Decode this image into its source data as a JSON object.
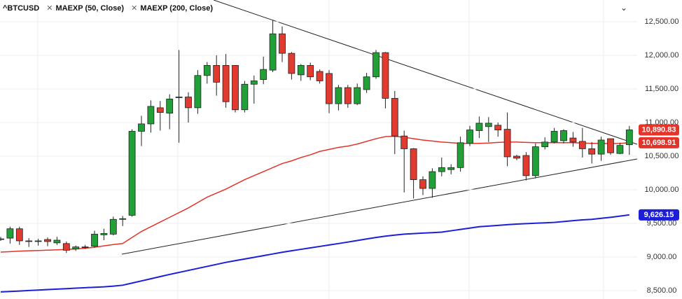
{
  "chart_data": {
    "type": "candlestick",
    "title": "^BTCUSD",
    "ylim": [
      8375,
      12823
    ],
    "yticks": [
      {
        "value": 8500,
        "label": "8,500.00"
      },
      {
        "value": 9000,
        "label": "9,000.00"
      },
      {
        "value": 9500,
        "label": "9,500.00"
      },
      {
        "value": 10000,
        "label": "10,000.00"
      },
      {
        "value": 10500,
        "label": "10,500.00"
      },
      {
        "value": 11000,
        "label": "11,000.00"
      },
      {
        "value": 11500,
        "label": "11,500.00"
      },
      {
        "value": 12000,
        "label": "12,000.00"
      },
      {
        "value": 12500,
        "label": "12,500.00"
      }
    ],
    "grid": true,
    "candles": {
      "up_color": "#21a038",
      "down_color": "#e23a2e",
      "label_color": "#e5352b",
      "last_label": "10,890.83",
      "open": [
        9270,
        9280,
        9420,
        9240,
        9230,
        9260,
        9210,
        9200,
        9120,
        9150,
        9160,
        9330,
        9340,
        9560,
        9620,
        10870,
        10980,
        11220,
        11140,
        11370,
        11380,
        11220,
        11700,
        11850,
        11850,
        11850,
        11190,
        11570,
        11640,
        11780,
        12320,
        12030,
        11710,
        11850,
        11760,
        11730,
        11280,
        11520,
        11280,
        11490,
        11680,
        12040,
        11360,
        10800,
        10610,
        10150,
        10020,
        10270,
        10300,
        10330,
        10690,
        10880,
        10940,
        10960,
        10900,
        10500,
        10510,
        10210,
        10640,
        10710,
        10730,
        10770,
        10720,
        10610,
        10530,
        10760,
        10540,
        10670
      ],
      "high": [
        9300,
        9450,
        9450,
        9280,
        9270,
        9290,
        9300,
        9230,
        9170,
        9180,
        9390,
        9420,
        9600,
        9610,
        10900,
        11100,
        11330,
        11320,
        11420,
        12080,
        11450,
        11780,
        11900,
        12000,
        12020,
        11850,
        11620,
        11700,
        11980,
        12520,
        12430,
        12050,
        11870,
        11890,
        11790,
        11780,
        11560,
        11560,
        11580,
        11740,
        12080,
        12050,
        11470,
        10880,
        10620,
        10200,
        10320,
        10480,
        10380,
        10790,
        10950,
        11090,
        11080,
        11000,
        11150,
        10520,
        10560,
        10690,
        10780,
        10920,
        10900,
        10860,
        10920,
        10710,
        10790,
        10760,
        10700,
        10950
      ],
      "low": [
        9240,
        9200,
        9180,
        9150,
        9170,
        9160,
        9180,
        9060,
        9090,
        9120,
        9140,
        9250,
        9320,
        9460,
        9600,
        10650,
        10850,
        10880,
        10900,
        10700,
        11000,
        11130,
        11580,
        11400,
        11220,
        11150,
        11150,
        11280,
        11570,
        11750,
        11900,
        11640,
        11620,
        11630,
        11580,
        11140,
        11180,
        11220,
        11260,
        11440,
        11650,
        11210,
        10530,
        9960,
        9870,
        9920,
        9880,
        10200,
        10230,
        10270,
        10650,
        10770,
        10710,
        10790,
        10350,
        10440,
        10140,
        10170,
        10600,
        10690,
        10690,
        10640,
        10480,
        10390,
        10430,
        10520,
        10530,
        10520
      ],
      "close": [
        9260,
        9420,
        9240,
        9230,
        9240,
        9230,
        9250,
        9100,
        9150,
        9140,
        9340,
        9350,
        9560,
        9570,
        10870,
        10980,
        11240,
        11150,
        11350,
        11380,
        11220,
        11700,
        11850,
        11600,
        11310,
        11190,
        11570,
        11620,
        11790,
        12320,
        12030,
        11730,
        11850,
        11680,
        11620,
        11280,
        11520,
        11280,
        11520,
        11680,
        12040,
        11360,
        10800,
        10610,
        10150,
        10020,
        10270,
        10330,
        10330,
        10700,
        10890,
        10990,
        10990,
        10890,
        10490,
        10470,
        10210,
        10640,
        10710,
        10870,
        10880,
        10710,
        10610,
        10530,
        10740,
        10550,
        10660,
        10890.83
      ]
    },
    "series": [
      {
        "name": "MAEXP (50, Close)",
        "color": "#e3342a",
        "last_label": "10,698.91",
        "values": [
          9073,
          9080,
          9087,
          9092,
          9097,
          9102,
          9107,
          9112,
          9120,
          9130,
          9145,
          9165,
          9185,
          9200,
          9290,
          9380,
          9450,
          9520,
          9590,
          9660,
          9730,
          9810,
          9890,
          9950,
          10010,
          10080,
          10150,
          10210,
          10270,
          10330,
          10390,
          10430,
          10480,
          10520,
          10570,
          10600,
          10630,
          10650,
          10680,
          10720,
          10760,
          10790,
          10795,
          10780,
          10760,
          10740,
          10725,
          10710,
          10700,
          10690,
          10690,
          10690,
          10695,
          10705,
          10710,
          10710,
          10705,
          10700,
          10700,
          10700,
          10700,
          10700,
          10695,
          10690,
          10690,
          10685,
          10690,
          10698.91
        ]
      },
      {
        "name": "MAEXP (200, Close)",
        "color": "#1d1ed8",
        "last_label": "9,626.15",
        "values": [
          8480,
          8487,
          8494,
          8501,
          8508,
          8515,
          8522,
          8529,
          8536,
          8543,
          8550,
          8556,
          8566,
          8580,
          8612,
          8644,
          8676,
          8708,
          8740,
          8770,
          8800,
          8830,
          8860,
          8890,
          8920,
          8945,
          8970,
          8995,
          9020,
          9045,
          9070,
          9092,
          9114,
          9135,
          9157,
          9178,
          9200,
          9222,
          9245,
          9268,
          9290,
          9310,
          9325,
          9340,
          9348,
          9355,
          9362,
          9370,
          9390,
          9410,
          9430,
          9450,
          9460,
          9470,
          9480,
          9490,
          9496,
          9502,
          9508,
          9515,
          9527,
          9540,
          9552,
          9560,
          9575,
          9590,
          9608,
          9626.15
        ]
      }
    ]
  }
}
